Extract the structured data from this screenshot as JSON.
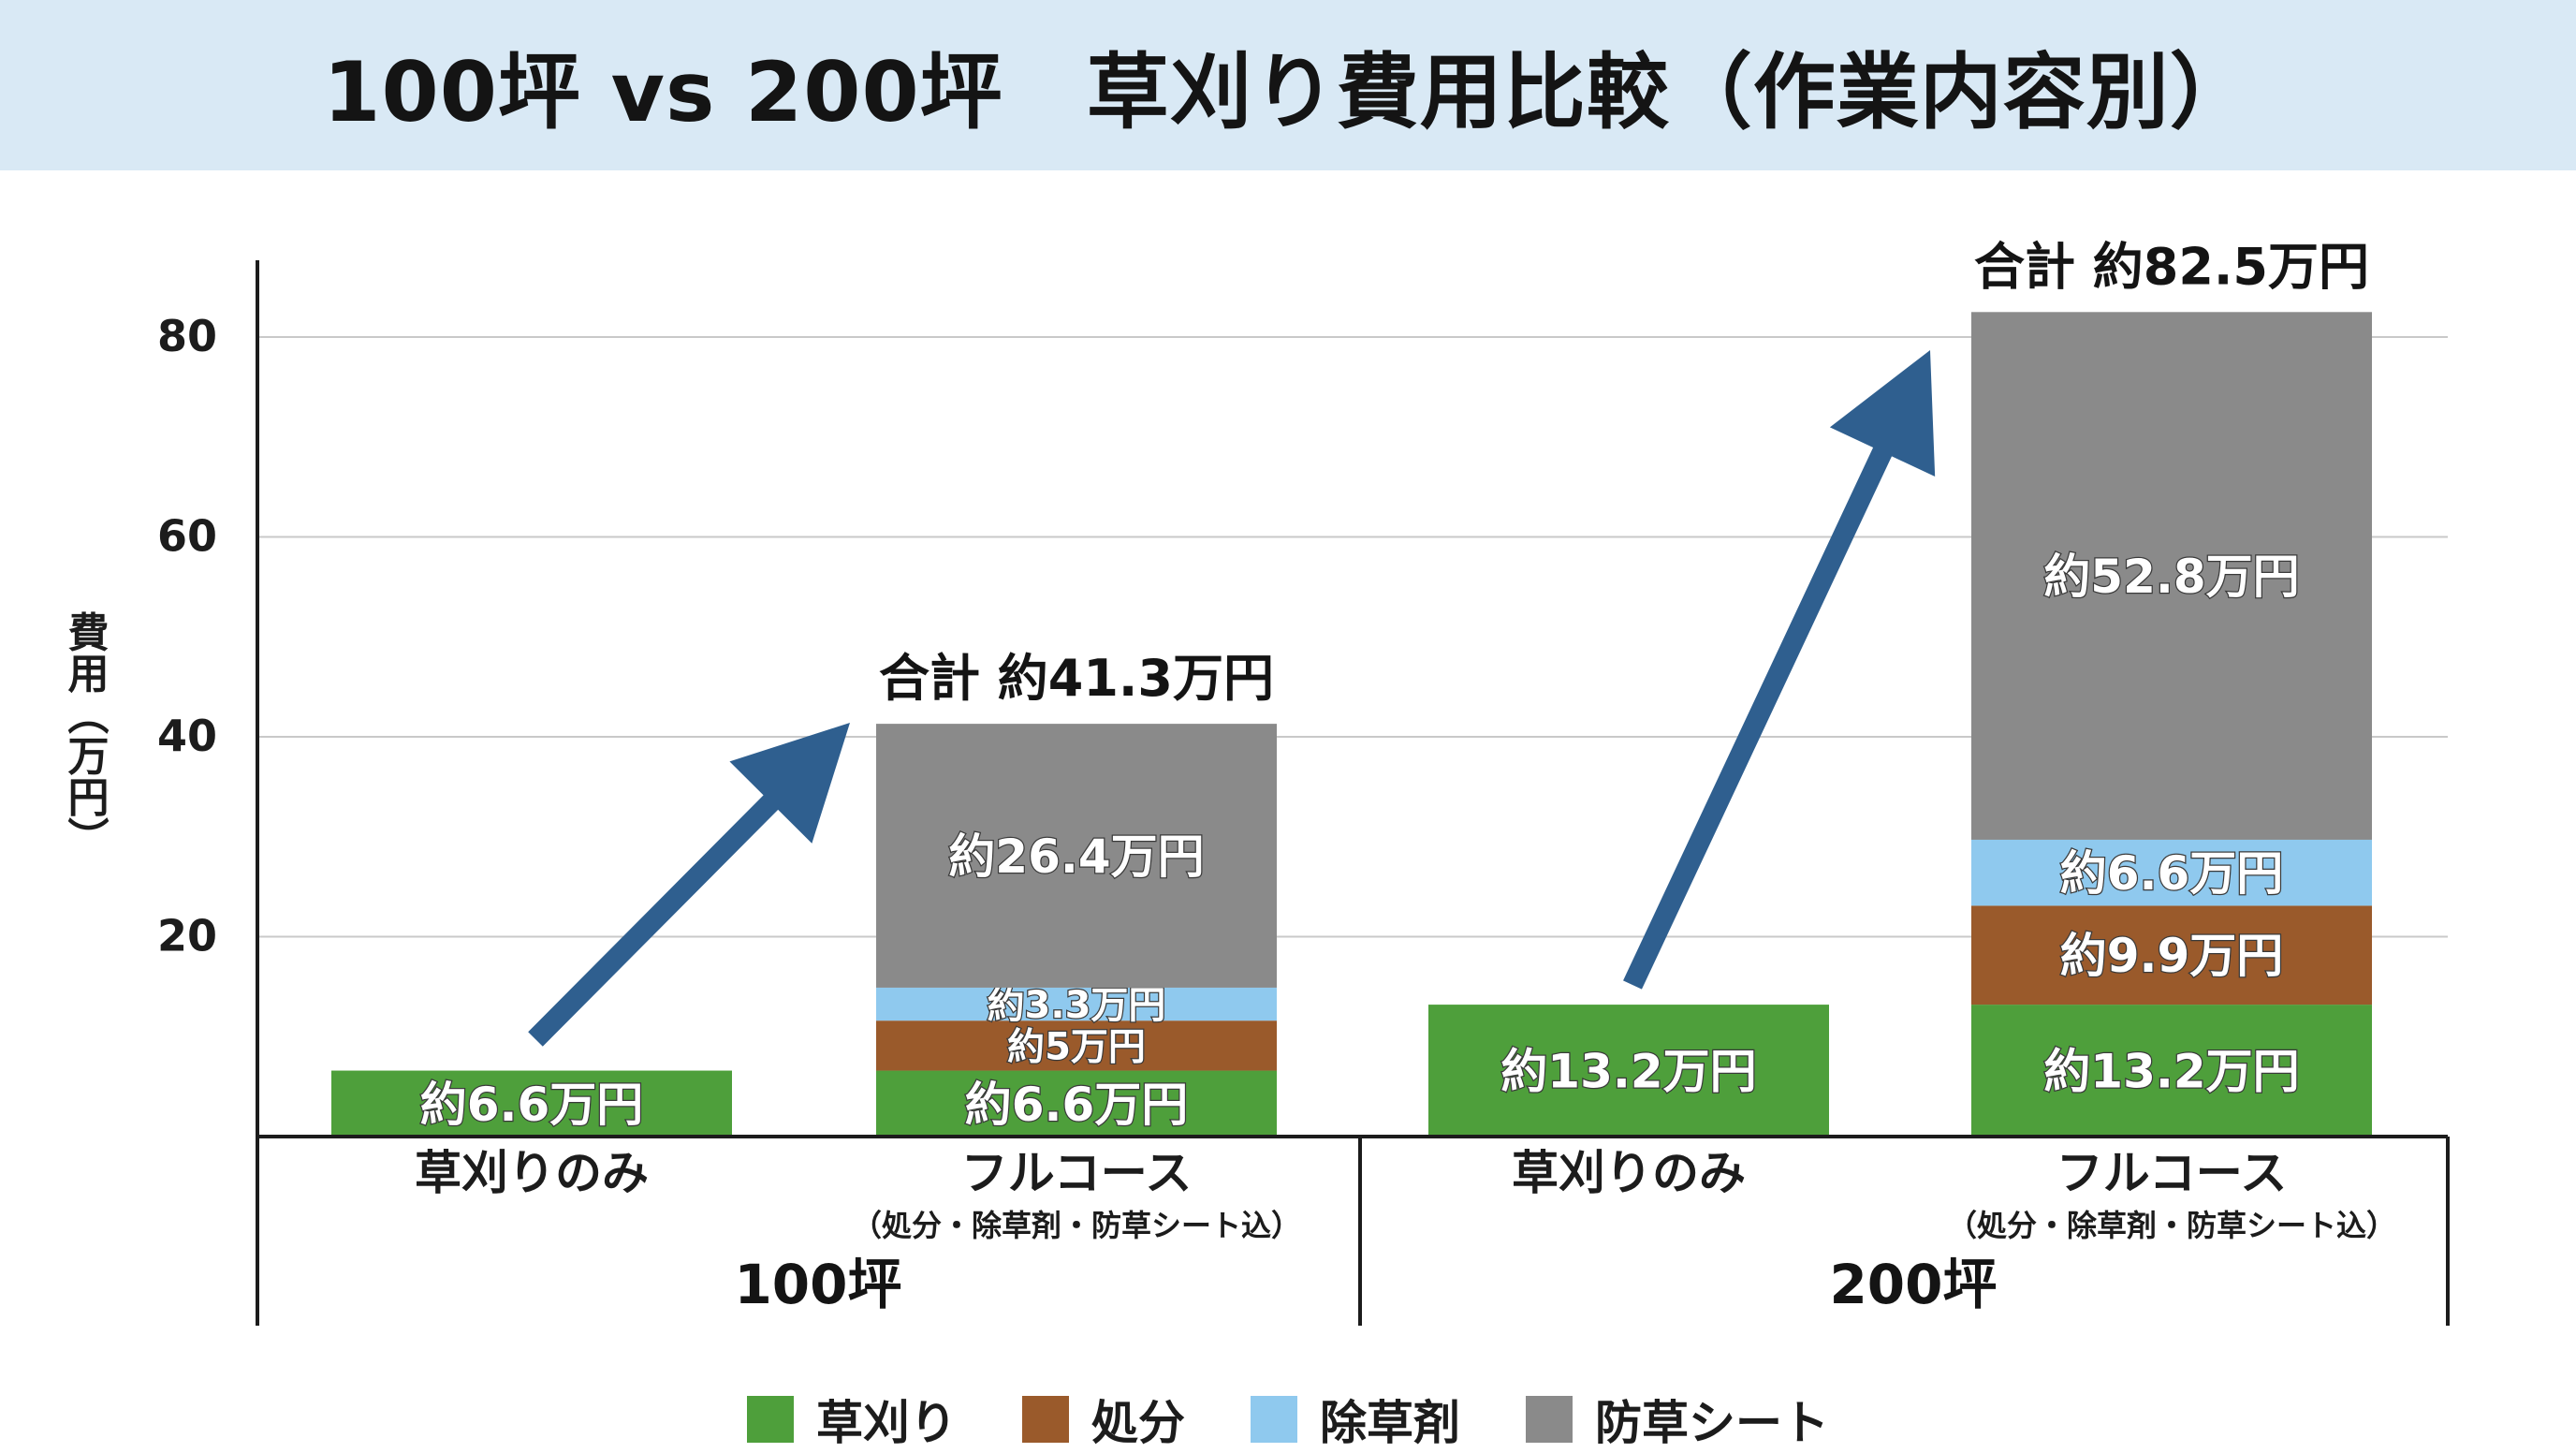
{
  "title": "100坪 vs 200坪　草刈り費用比較（作業内容別）",
  "chart_data": {
    "type": "bar",
    "stacked": true,
    "title": "100坪 vs 200坪　草刈り費用比較（作業内容別）",
    "ylabel": "費用（万円）",
    "xlabel": "",
    "ylim": [
      0,
      88
    ],
    "yticks": [
      20,
      40,
      60,
      80
    ],
    "grid": true,
    "legend_position": "bottom",
    "colors": {
      "草刈り": "#4e9f3b",
      "処分": "#9a5a2b",
      "除草剤": "#8fc9ee",
      "防草シート": "#8a8a8a"
    },
    "groups": [
      {
        "name": "100坪",
        "bars": [
          {
            "label": "草刈りのみ",
            "sublabel": "",
            "segments": [
              {
                "series": "草刈り",
                "value": 6.6,
                "label": "約6.6万円"
              }
            ],
            "total_label": ""
          },
          {
            "label": "フルコース",
            "sublabel": "（処分・除草剤・防草シート込）",
            "segments": [
              {
                "series": "草刈り",
                "value": 6.6,
                "label": "約6.6万円"
              },
              {
                "series": "処分",
                "value": 5,
                "label": "約5万円"
              },
              {
                "series": "除草剤",
                "value": 3.3,
                "label": "約3.3万円"
              },
              {
                "series": "防草シート",
                "value": 26.4,
                "label": "約26.4万円"
              }
            ],
            "total_label": "合計 約41.3万円"
          }
        ]
      },
      {
        "name": "200坪",
        "bars": [
          {
            "label": "草刈りのみ",
            "sublabel": "",
            "segments": [
              {
                "series": "草刈り",
                "value": 13.2,
                "label": "約13.2万円"
              }
            ],
            "total_label": ""
          },
          {
            "label": "フルコース",
            "sublabel": "（処分・除草剤・防草シート込）",
            "segments": [
              {
                "series": "草刈り",
                "value": 13.2,
                "label": "約13.2万円"
              },
              {
                "series": "処分",
                "value": 9.9,
                "label": "約9.9万円"
              },
              {
                "series": "除草剤",
                "value": 6.6,
                "label": "約6.6万円"
              },
              {
                "series": "防草シート",
                "value": 52.8,
                "label": "約52.8万円"
              }
            ],
            "total_label": "合計 約82.5万円"
          }
        ]
      }
    ],
    "legend": [
      "草刈り",
      "処分",
      "除草剤",
      "防草シート"
    ],
    "annotations": [
      {
        "type": "arrow",
        "group": "100坪",
        "from": "草刈りのみ",
        "to": "フルコース"
      },
      {
        "type": "arrow",
        "group": "200坪",
        "from": "草刈りのみ",
        "to": "フルコース"
      }
    ]
  },
  "arrow_color": "#2f5f8f",
  "title_band_color": "#d9e9f5"
}
